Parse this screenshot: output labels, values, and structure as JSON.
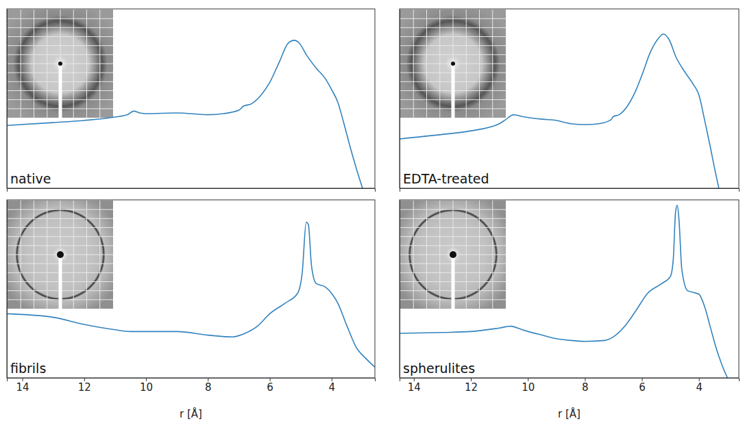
{
  "chart_data": [
    {
      "type": "line",
      "title": "native",
      "xlim": [
        14.5,
        2.6
      ],
      "ylim": [
        0,
        1
      ],
      "tick_labels": false,
      "x": [
        14.5,
        13,
        12,
        11,
        10.6,
        10.4,
        10.2,
        10,
        9,
        8,
        7.5,
        7.0,
        6.85,
        6.6,
        6.3,
        6.0,
        5.7,
        5.4,
        5.2,
        5.05,
        4.8,
        4.5,
        4.2,
        4.0,
        3.8,
        3.6,
        3.4,
        3.2,
        3.0
      ],
      "series": [
        {
          "color": "#3283be",
          "values": [
            0.35,
            0.366,
            0.378,
            0.397,
            0.41,
            0.43,
            0.42,
            0.416,
            0.42,
            0.41,
            0.416,
            0.435,
            0.458,
            0.47,
            0.515,
            0.59,
            0.7,
            0.81,
            0.825,
            0.81,
            0.74,
            0.67,
            0.61,
            0.55,
            0.48,
            0.36,
            0.23,
            0.11,
            0.0
          ]
        }
      ]
    },
    {
      "type": "line",
      "title": "EDTA-treated",
      "xlim": [
        14.5,
        2.6
      ],
      "ylim": [
        0,
        1
      ],
      "tick_labels": false,
      "x": [
        14.5,
        13,
        12,
        11,
        10.8,
        10.5,
        10.2,
        9.5,
        9,
        8.5,
        8,
        7.5,
        7.1,
        7.0,
        6.8,
        6.5,
        6.2,
        6.0,
        5.7,
        5.4,
        5.25,
        5.05,
        4.8,
        4.5,
        4.2,
        4.0,
        3.8,
        3.6,
        3.45,
        3.3
      ],
      "series": [
        {
          "color": "#3283be",
          "values": [
            0.275,
            0.3,
            0.32,
            0.36,
            0.38,
            0.41,
            0.4,
            0.385,
            0.378,
            0.36,
            0.355,
            0.36,
            0.38,
            0.4,
            0.41,
            0.46,
            0.55,
            0.63,
            0.76,
            0.84,
            0.86,
            0.83,
            0.73,
            0.65,
            0.58,
            0.52,
            0.38,
            0.23,
            0.11,
            0.0
          ]
        }
      ]
    },
    {
      "type": "line",
      "title": "fibrils",
      "xlabel": "r [Å]",
      "xlim": [
        14.5,
        2.6
      ],
      "ylim": [
        0,
        1
      ],
      "xticks": [
        14,
        12,
        10,
        8,
        6,
        4
      ],
      "tick_labels": "x",
      "x": [
        14.5,
        13,
        12,
        11,
        10.5,
        10,
        9,
        8,
        7.2,
        6.8,
        6.4,
        6.0,
        5.5,
        5.1,
        4.95,
        4.82,
        4.75,
        4.65,
        4.5,
        4.2,
        4.0,
        3.8,
        3.5,
        3.2,
        2.9,
        2.6
      ],
      "series": [
        {
          "color": "#3283be",
          "values": [
            0.36,
            0.34,
            0.3,
            0.27,
            0.26,
            0.26,
            0.26,
            0.24,
            0.23,
            0.25,
            0.29,
            0.36,
            0.42,
            0.475,
            0.59,
            0.875,
            0.86,
            0.63,
            0.53,
            0.51,
            0.475,
            0.42,
            0.29,
            0.17,
            0.11,
            0.06
          ]
        }
      ]
    },
    {
      "type": "line",
      "title": "spherulites",
      "xlabel": "r [Å]",
      "xlim": [
        14.5,
        2.6
      ],
      "ylim": [
        0,
        1
      ],
      "xticks": [
        14,
        12,
        10,
        8,
        6,
        4
      ],
      "tick_labels": "x",
      "x": [
        14.5,
        13,
        12,
        11,
        10.6,
        10.2,
        9.5,
        9,
        8.5,
        8,
        7.3,
        7.0,
        6.6,
        6.2,
        5.8,
        5.3,
        5.0,
        4.9,
        4.82,
        4.76,
        4.7,
        4.6,
        4.4,
        4.2,
        4.0,
        3.8,
        3.6,
        3.4,
        3.2,
        3.0
      ],
      "series": [
        {
          "color": "#3283be",
          "values": [
            0.25,
            0.255,
            0.26,
            0.28,
            0.29,
            0.27,
            0.24,
            0.22,
            0.21,
            0.205,
            0.21,
            0.23,
            0.29,
            0.38,
            0.475,
            0.53,
            0.57,
            0.665,
            0.93,
            0.97,
            0.89,
            0.61,
            0.49,
            0.48,
            0.47,
            0.4,
            0.285,
            0.17,
            0.076,
            0.0
          ]
        }
      ]
    }
  ]
}
